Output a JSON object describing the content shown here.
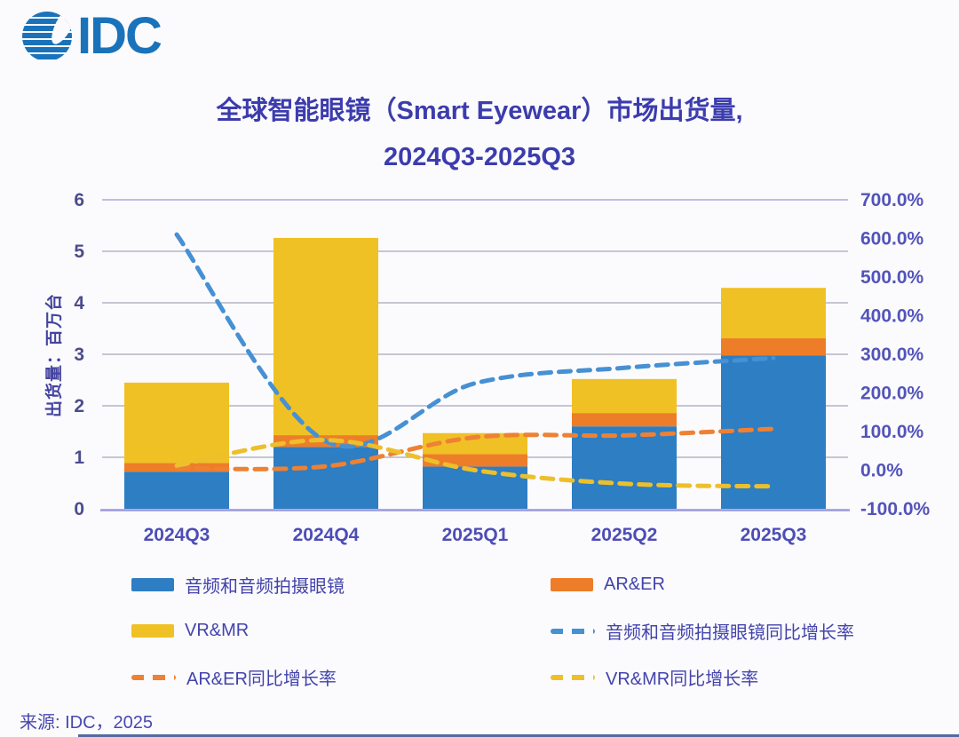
{
  "logo": {
    "text": "IDC"
  },
  "title": {
    "line1": "全球智能眼镜（Smart Eyewear）市场出货量,",
    "line2": "2024Q3-2025Q3"
  },
  "y_axis_title": "出货量：百万台",
  "source": "来源: IDC，2025",
  "chart_data": {
    "type": "combo: stacked bar + dashed line (secondary axis)",
    "title": "全球智能眼镜（Smart Eyewear）市场出货量, 2024Q3-2025Q3",
    "ylabel": "出货量：百万台",
    "categories": [
      "2024Q3",
      "2024Q4",
      "2025Q1",
      "2025Q2",
      "2025Q3"
    ],
    "bar_series": [
      {
        "key": "audio",
        "name": "音频和音频拍摄眼镜",
        "color": "#2d7ec3",
        "values": [
          0.72,
          1.2,
          0.82,
          1.6,
          2.98
        ]
      },
      {
        "key": "arer",
        "name": "AR&ER",
        "color": "#ed7d28",
        "values": [
          0.17,
          0.23,
          0.24,
          0.26,
          0.33
        ]
      },
      {
        "key": "vrmr",
        "name": "VR&MR",
        "color": "#f0c125",
        "values": [
          1.56,
          3.83,
          0.41,
          0.66,
          0.98
        ]
      }
    ],
    "bar_totals": [
      2.45,
      5.26,
      1.47,
      2.52,
      4.29
    ],
    "line_series": [
      {
        "key": "audio-growth",
        "name": "音频和音频拍摄眼镜同比增长率",
        "color": "#4690d4",
        "values_pct": [
          610,
          75,
          225,
          265,
          290
        ]
      },
      {
        "key": "arer-growth",
        "name": "AR&ER同比增长率",
        "color": "#ee8133",
        "values_pct": [
          5,
          10,
          85,
          90,
          107
        ]
      },
      {
        "key": "vrmr-growth",
        "name": "VR&MR同比增长率",
        "color": "#edbf2b",
        "values_pct": [
          12,
          78,
          0,
          -35,
          -42
        ]
      }
    ],
    "left_axis": {
      "min": 0,
      "max": 6,
      "ticks": [
        "0",
        "1",
        "2",
        "3",
        "4",
        "5",
        "6"
      ]
    },
    "right_axis": {
      "min": -100,
      "max": 700,
      "ticks": [
        "-100.0%",
        "0.0%",
        "100.0%",
        "200.0%",
        "300.0%",
        "400.0%",
        "500.0%",
        "600.0%",
        "700.0%"
      ]
    },
    "grid": true,
    "legend_position": "bottom"
  },
  "legend": {
    "items": [
      {
        "label": "音频和音频拍摄眼镜",
        "swatch": "solid",
        "color": "#2d7ec3"
      },
      {
        "label": "AR&ER",
        "swatch": "solid",
        "color": "#ed7d28"
      },
      {
        "label": "VR&MR",
        "swatch": "solid",
        "color": "#f0c125"
      },
      {
        "label": "音频和音频拍摄眼镜同比增长率",
        "swatch": "dashed",
        "color": "#4690d4"
      },
      {
        "label": "AR&ER同比增长率",
        "swatch": "dashed",
        "color": "#ee8133"
      },
      {
        "label": "VR&MR同比增长率",
        "swatch": "dashed",
        "color": "#edbf2b"
      }
    ]
  }
}
